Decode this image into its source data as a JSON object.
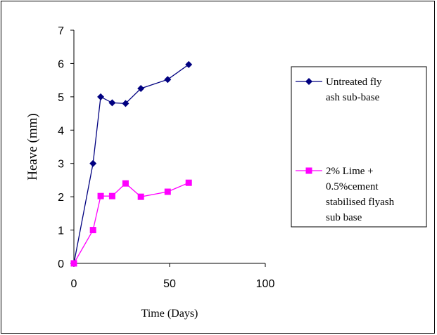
{
  "chart_data": {
    "type": "line",
    "xlabel": "Time (Days)",
    "ylabel": "Heave (mm)",
    "xlim": [
      0,
      100
    ],
    "ylim": [
      0,
      7
    ],
    "xticks": [
      "0",
      "50",
      "100"
    ],
    "yticks": [
      "0",
      "1",
      "2",
      "3",
      "4",
      "5",
      "6",
      "7"
    ],
    "grid": false,
    "legend_position": "right",
    "series": [
      {
        "name": "Untreated fly ash sub-base",
        "legend_lines": [
          "Untreated fly",
          "ash sub-base"
        ],
        "marker": "diamond",
        "color": "#000080",
        "points": [
          [
            0,
            0
          ],
          [
            10,
            3.0
          ],
          [
            14,
            5.0
          ],
          [
            20,
            4.82
          ],
          [
            27,
            4.8
          ],
          [
            35,
            5.25
          ],
          [
            49,
            5.52
          ],
          [
            60,
            5.97
          ]
        ]
      },
      {
        "name": "2% Lime + 0.5%cement stabilised flyash sub base",
        "legend_lines": [
          "2% Lime +",
          "0.5%cement",
          "stabilised flyash",
          "sub base"
        ],
        "marker": "square",
        "color": "#FF00FF",
        "points": [
          [
            0,
            0
          ],
          [
            10,
            1.0
          ],
          [
            14,
            2.02
          ],
          [
            20,
            2.02
          ],
          [
            27,
            2.4
          ],
          [
            35,
            2.0
          ],
          [
            49,
            2.15
          ],
          [
            60,
            2.42
          ]
        ]
      }
    ]
  }
}
